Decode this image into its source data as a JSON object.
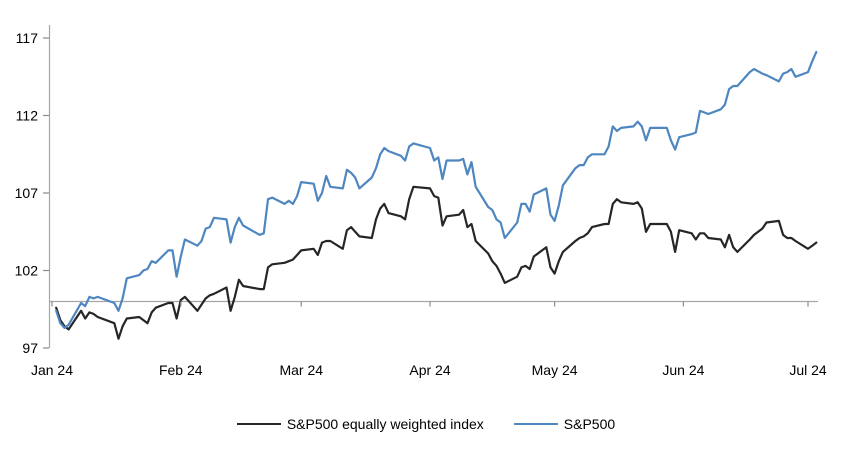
{
  "chart_data": {
    "type": "line",
    "title": "",
    "legend_position": "bottom",
    "grid": "baseline-only",
    "colors": {
      "axis_line": "#a6a6a6",
      "tick_mark": "#8c8c8c",
      "baseline": "#a6a6a6",
      "label_text": "#000000",
      "background": "#ffffff"
    },
    "x_axis": {
      "unit": "month",
      "tick_labels": [
        "Jan 24",
        "Feb 24",
        "Mar 24",
        "Apr 24",
        "May 24",
        "Jun 24",
        "Jul 24"
      ],
      "tick_day_offsets": [
        0,
        31,
        60,
        91,
        121,
        152,
        182
      ],
      "range_days": [
        0,
        185
      ]
    },
    "y_axis": {
      "tick_labels": [
        "97",
        "102",
        "107",
        "112",
        "117"
      ],
      "tick_values": [
        97,
        102,
        107,
        112,
        117
      ],
      "range": [
        97,
        118
      ],
      "baseline_value": 100
    },
    "series": [
      {
        "name": "S&P500 equally weighted index",
        "color": "#262626",
        "day_offsets": [
          1,
          2,
          3,
          4,
          7,
          8,
          9,
          10,
          11,
          15,
          16,
          17,
          18,
          21,
          22,
          23,
          24,
          25,
          28,
          29,
          30,
          31,
          32,
          35,
          36,
          37,
          38,
          39,
          42,
          43,
          44,
          45,
          46,
          50,
          51,
          52,
          53,
          56,
          57,
          58,
          59,
          60,
          63,
          64,
          65,
          66,
          67,
          70,
          71,
          72,
          73,
          74,
          77,
          78,
          79,
          80,
          81,
          84,
          85,
          86,
          87,
          91,
          92,
          93,
          94,
          95,
          98,
          99,
          100,
          101,
          102,
          105,
          106,
          107,
          108,
          109,
          112,
          113,
          114,
          115,
          116,
          119,
          120,
          121,
          122,
          123,
          126,
          127,
          128,
          129,
          130,
          133,
          134,
          135,
          136,
          137,
          140,
          141,
          142,
          143,
          144,
          148,
          149,
          150,
          151,
          154,
          155,
          156,
          157,
          158,
          161,
          162,
          163,
          164,
          165,
          168,
          169,
          171,
          172,
          175,
          176,
          177,
          178,
          179,
          182,
          183,
          184
        ],
        "values": [
          99.6,
          98.8,
          98.4,
          98.2,
          99.4,
          98.9,
          99.3,
          99.2,
          99.0,
          98.6,
          97.6,
          98.4,
          98.9,
          99.0,
          98.8,
          98.6,
          99.3,
          99.6,
          99.9,
          99.9,
          98.9,
          100.1,
          100.3,
          99.4,
          99.8,
          100.2,
          100.4,
          100.5,
          100.9,
          99.4,
          100.3,
          101.4,
          101.0,
          100.8,
          100.8,
          102.2,
          102.4,
          102.5,
          102.6,
          102.7,
          103.0,
          103.3,
          103.4,
          103.0,
          103.8,
          103.9,
          103.9,
          103.4,
          104.6,
          104.8,
          104.5,
          104.2,
          104.1,
          105.3,
          106.0,
          106.3,
          105.7,
          105.5,
          105.3,
          106.6,
          107.4,
          107.3,
          106.8,
          106.7,
          104.9,
          105.5,
          105.6,
          105.9,
          104.8,
          105.0,
          103.9,
          103.1,
          102.6,
          102.3,
          101.8,
          101.2,
          101.6,
          102.2,
          102.3,
          102.1,
          102.9,
          103.5,
          102.2,
          101.8,
          102.6,
          103.2,
          103.9,
          104.1,
          104.2,
          104.4,
          104.8,
          105.0,
          105.0,
          106.3,
          106.6,
          106.4,
          106.3,
          106.4,
          106.0,
          104.5,
          105.0,
          105.0,
          104.5,
          103.2,
          104.6,
          104.4,
          104.0,
          104.4,
          104.4,
          104.1,
          104.0,
          103.5,
          104.3,
          103.5,
          103.2,
          104.0,
          104.3,
          104.7,
          105.1,
          105.2,
          104.3,
          104.1,
          104.1,
          103.9,
          103.4,
          103.6,
          103.8
        ]
      },
      {
        "name": "S&P500",
        "color": "#4e86c0",
        "day_offsets": [
          1,
          2,
          3,
          4,
          7,
          8,
          9,
          10,
          11,
          15,
          16,
          17,
          18,
          21,
          22,
          23,
          24,
          25,
          28,
          29,
          30,
          31,
          32,
          35,
          36,
          37,
          38,
          39,
          42,
          43,
          44,
          45,
          46,
          50,
          51,
          52,
          53,
          56,
          57,
          58,
          59,
          60,
          63,
          64,
          65,
          66,
          67,
          70,
          71,
          72,
          73,
          74,
          77,
          78,
          79,
          80,
          81,
          84,
          85,
          86,
          87,
          91,
          92,
          93,
          94,
          95,
          98,
          99,
          100,
          101,
          102,
          105,
          106,
          107,
          108,
          109,
          112,
          113,
          114,
          115,
          116,
          119,
          120,
          121,
          122,
          123,
          126,
          127,
          128,
          129,
          130,
          133,
          134,
          135,
          136,
          137,
          140,
          141,
          142,
          143,
          144,
          148,
          149,
          150,
          151,
          154,
          155,
          156,
          157,
          158,
          161,
          162,
          163,
          164,
          165,
          168,
          169,
          171,
          172,
          175,
          176,
          177,
          178,
          179,
          182,
          183,
          184
        ],
        "values": [
          99.4,
          98.6,
          98.3,
          98.5,
          99.9,
          99.7,
          100.3,
          100.2,
          100.3,
          99.9,
          99.4,
          100.2,
          101.5,
          101.7,
          102.0,
          102.1,
          102.6,
          102.5,
          103.3,
          103.3,
          101.6,
          102.9,
          104.0,
          103.6,
          103.9,
          104.7,
          104.8,
          105.4,
          105.3,
          103.8,
          104.8,
          105.4,
          104.9,
          104.3,
          104.4,
          106.6,
          106.7,
          106.3,
          106.5,
          106.3,
          106.8,
          107.7,
          107.6,
          106.5,
          107.0,
          108.1,
          107.4,
          107.3,
          108.5,
          108.3,
          108.0,
          107.3,
          108.0,
          108.6,
          109.5,
          109.9,
          109.7,
          109.4,
          109.1,
          110.0,
          110.2,
          109.9,
          109.1,
          109.3,
          107.9,
          109.1,
          109.1,
          109.2,
          108.2,
          109.0,
          107.4,
          106.1,
          105.9,
          105.3,
          105.1,
          104.1,
          105.1,
          106.3,
          106.3,
          105.8,
          106.9,
          107.3,
          105.6,
          105.2,
          106.2,
          107.5,
          108.6,
          108.8,
          108.8,
          109.3,
          109.5,
          109.5,
          110.0,
          111.3,
          111.0,
          111.2,
          111.3,
          111.6,
          111.3,
          110.4,
          111.2,
          111.2,
          110.4,
          109.8,
          110.6,
          110.8,
          110.9,
          112.3,
          112.2,
          112.1,
          112.4,
          112.7,
          113.7,
          113.9,
          113.9,
          114.8,
          115.0,
          114.7,
          114.6,
          114.2,
          114.7,
          114.8,
          115.0,
          114.5,
          114.8,
          115.5,
          116.1
        ]
      }
    ]
  },
  "legend": {
    "items": [
      {
        "label": "S&P500 equally weighted index"
      },
      {
        "label": "S&P500"
      }
    ]
  }
}
